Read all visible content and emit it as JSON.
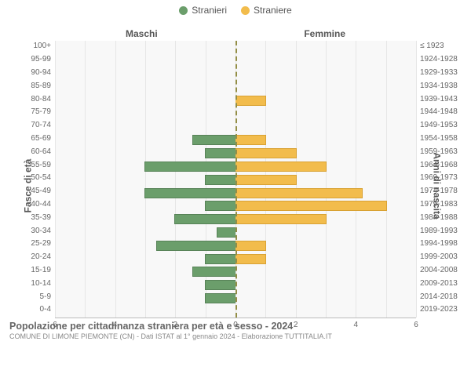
{
  "legend": {
    "male": {
      "label": "Stranieri",
      "color": "#6b9e6b"
    },
    "female": {
      "label": "Straniere",
      "color": "#f2bc4c"
    }
  },
  "columns": {
    "left": "Maschi",
    "right": "Femmine"
  },
  "axes": {
    "left_label": "Fasce di età",
    "right_label": "Anni di nascita",
    "xmax": 6,
    "xticks": [
      6,
      4,
      2,
      0,
      2,
      4,
      6
    ]
  },
  "style": {
    "background": "#f8f8f8",
    "grid_color": "#e6e6e6",
    "center_line": "#938e46",
    "axis_color": "#bbbbbb",
    "m_border": "#578257",
    "f_border": "#d9a233"
  },
  "rows": [
    {
      "age": "100+",
      "birth": "≤ 1923",
      "m": 0,
      "f": 0
    },
    {
      "age": "95-99",
      "birth": "1924-1928",
      "m": 0,
      "f": 0
    },
    {
      "age": "90-94",
      "birth": "1929-1933",
      "m": 0,
      "f": 0
    },
    {
      "age": "85-89",
      "birth": "1934-1938",
      "m": 0,
      "f": 0
    },
    {
      "age": "80-84",
      "birth": "1939-1943",
      "m": 0,
      "f": 1
    },
    {
      "age": "75-79",
      "birth": "1944-1948",
      "m": 0,
      "f": 0
    },
    {
      "age": "70-74",
      "birth": "1949-1953",
      "m": 0,
      "f": 0
    },
    {
      "age": "65-69",
      "birth": "1954-1958",
      "m": 1.4,
      "f": 1
    },
    {
      "age": "60-64",
      "birth": "1959-1963",
      "m": 1,
      "f": 2
    },
    {
      "age": "55-59",
      "birth": "1964-1968",
      "m": 3,
      "f": 3
    },
    {
      "age": "50-54",
      "birth": "1969-1973",
      "m": 1,
      "f": 2
    },
    {
      "age": "45-49",
      "birth": "1974-1978",
      "m": 3,
      "f": 4.2
    },
    {
      "age": "40-44",
      "birth": "1979-1983",
      "m": 1,
      "f": 5
    },
    {
      "age": "35-39",
      "birth": "1984-1988",
      "m": 2,
      "f": 3
    },
    {
      "age": "30-34",
      "birth": "1989-1993",
      "m": 0.6,
      "f": 0
    },
    {
      "age": "25-29",
      "birth": "1994-1998",
      "m": 2.6,
      "f": 1
    },
    {
      "age": "20-24",
      "birth": "1999-2003",
      "m": 1,
      "f": 1
    },
    {
      "age": "15-19",
      "birth": "2004-2008",
      "m": 1.4,
      "f": 0
    },
    {
      "age": "10-14",
      "birth": "2009-2013",
      "m": 1,
      "f": 0
    },
    {
      "age": "5-9",
      "birth": "2014-2018",
      "m": 1,
      "f": 0
    },
    {
      "age": "0-4",
      "birth": "2019-2023",
      "m": 0,
      "f": 0
    }
  ],
  "footer": {
    "title": "Popolazione per cittadinanza straniera per età e sesso - 2024",
    "subtitle": "COMUNE DI LIMONE PIEMONTE (CN) - Dati ISTAT al 1° gennaio 2024 - Elaborazione TUTTITALIA.IT"
  }
}
